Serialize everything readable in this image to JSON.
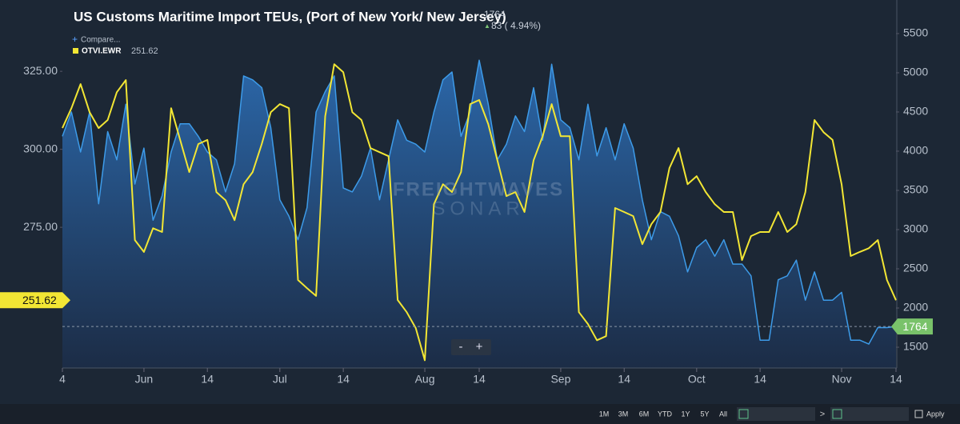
{
  "chart_data": {
    "type": "line",
    "title": "US Customs Maritime Import TEUs, (Port of New York/ New Jersey)",
    "change_label": "83 ( 4.94%)",
    "compare": "Compare...",
    "watermark": [
      "FREIGHTWAVES",
      "SONAR"
    ],
    "zoom": [
      "-",
      "+"
    ],
    "range_buttons": [
      "1M",
      "3M",
      "6M",
      "YTD",
      "1Y",
      "5Y",
      "All"
    ],
    "nav": ">",
    "apply": "Apply",
    "categories": [
      "4",
      null,
      null,
      null,
      null,
      null,
      null,
      null,
      null,
      "Jun",
      null,
      null,
      null,
      null,
      null,
      null,
      "14",
      null,
      null,
      null,
      null,
      null,
      null,
      null,
      "Jul",
      null,
      null,
      null,
      null,
      null,
      null,
      "14",
      null,
      null,
      null,
      null,
      null,
      null,
      null,
      null,
      "Aug",
      null,
      null,
      null,
      null,
      null,
      "14",
      null,
      null,
      null,
      null,
      null,
      null,
      null,
      null,
      "Sep",
      null,
      null,
      null,
      null,
      null,
      null,
      "14",
      null,
      null,
      null,
      null,
      null,
      null,
      null,
      "Oct",
      null,
      null,
      null,
      null,
      null,
      null,
      "14",
      null,
      null,
      null,
      null,
      null,
      null,
      null,
      null,
      "Nov",
      null,
      null,
      null,
      null,
      null,
      "14"
    ],
    "series": [
      {
        "color": "#3d9be9",
        "axis": "y2",
        "area": true,
        "values": [
          4190,
          4500,
          3990,
          4500,
          3330,
          4250,
          3890,
          4600,
          3580,
          4040,
          3120,
          3430,
          3990,
          4350,
          4350,
          4190,
          3990,
          3890,
          3480,
          3840,
          4960,
          4910,
          4810,
          4300,
          3380,
          3170,
          2870,
          3280,
          4500,
          4760,
          4960,
          3530,
          3480,
          3680,
          4040,
          3380,
          3890,
          4400,
          4140,
          4090,
          3990,
          4500,
          4910,
          5010,
          4190,
          4500,
          5160,
          4600,
          3890,
          4090,
          4450,
          4250,
          4810,
          4140,
          5110,
          4400,
          4300,
          3890,
          4600,
          3940,
          4300,
          3890,
          4350,
          4040,
          3380,
          2870,
          3230,
          3170,
          2920,
          2460,
          2770,
          2870,
          2660,
          2870,
          2560,
          2560,
          2410,
          1590,
          1590,
          2360,
          2410,
          2610,
          2100,
          2460,
          2100,
          2100,
          2200,
          1590,
          1590,
          1540,
          1750,
          1750,
          1764
        ]
      },
      {
        "name": "OTVI.EWR",
        "color": "#f2e634",
        "values": [
          306.8,
          313.2,
          320.9,
          311.9,
          306.8,
          309.4,
          318.3,
          322.2,
          270.9,
          267.1,
          274.7,
          273.5,
          313.2,
          303.0,
          292.7,
          301.7,
          303.0,
          286.3,
          283.7,
          277.3,
          288.8,
          292.7,
          301.7,
          311.9,
          314.5,
          313.2,
          258.1,
          255.5,
          253.0,
          310.6,
          327.3,
          324.7,
          311.9,
          309.4,
          300.4,
          299.1,
          297.8,
          251.7,
          247.8,
          242.7,
          232.4,
          282.4,
          288.8,
          286.3,
          292.7,
          314.5,
          315.8,
          308.1,
          296.5,
          285.0,
          286.3,
          279.9,
          296.5,
          304.2,
          314.5,
          304.2,
          304.2,
          247.8,
          244.0,
          238.8,
          240.1,
          281.2,
          279.9,
          278.6,
          269.6,
          276.0,
          279.9,
          294.0,
          300.4,
          288.8,
          291.4,
          286.3,
          282.4,
          279.9,
          279.9,
          264.5,
          272.2,
          273.5,
          273.5,
          279.9,
          273.5,
          276.0,
          286.3,
          309.4,
          305.5,
          303.0,
          288.8,
          265.8,
          267.1,
          268.3,
          270.9,
          258.1,
          251.62
        ]
      }
    ],
    "ylim": [
      229.9,
      345.3
    ],
    "yticks": [
      {
        "value": 275,
        "label": "275.00"
      },
      {
        "value": 300,
        "label": "300.00"
      },
      {
        "value": 325,
        "label": "325.00"
      }
    ],
    "y2lim": [
      1235,
      5826
    ],
    "y2ticks": [
      1500,
      2000,
      2500,
      3000,
      3500,
      4000,
      4500,
      5000,
      5500
    ],
    "grid": false
  }
}
